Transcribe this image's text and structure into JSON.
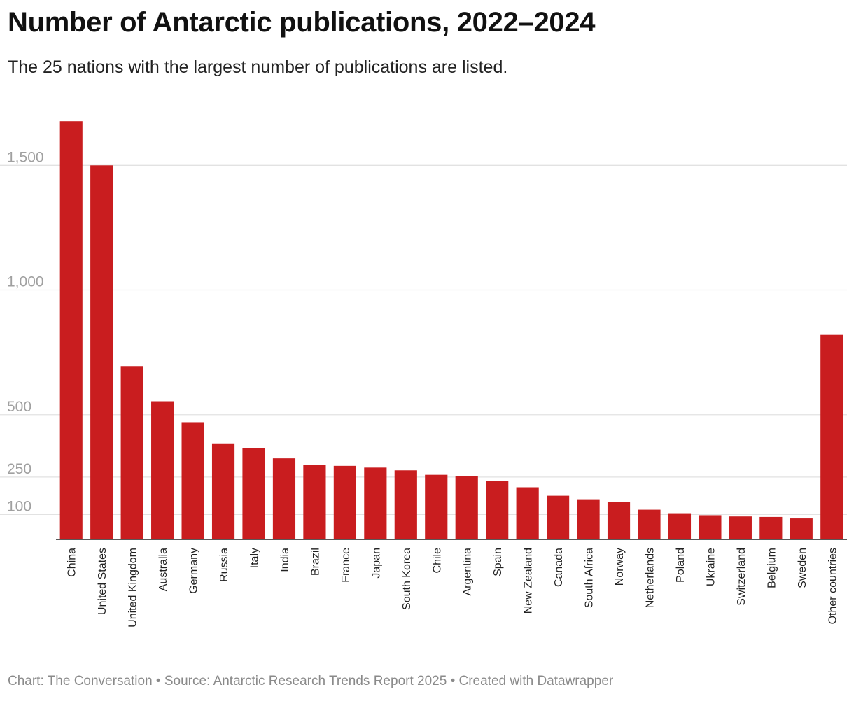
{
  "title": "Number of Antarctic publications, 2022–2024",
  "subtitle": "The 25 nations with the largest number of publications are listed.",
  "footer": "Chart: The Conversation • Source: Antarctic Research Trends Report 2025 • Created with Datawrapper",
  "chart_data": {
    "type": "bar",
    "title": "Number of Antarctic publications, 2022–2024",
    "subtitle": "The 25 nations with the largest number of publications are listed.",
    "categories": [
      "China",
      "United States",
      "United Kingdom",
      "Australia",
      "Germany",
      "Russia",
      "Italy",
      "India",
      "Brazil",
      "France",
      "Japan",
      "South Korea",
      "Chile",
      "Argentina",
      "Spain",
      "New Zealand",
      "Canada",
      "South Africa",
      "Norway",
      "Netherlands",
      "Poland",
      "Ukraine",
      "Switzerland",
      "Belgium",
      "Sweden",
      "Other countries"
    ],
    "values": [
      1677,
      1500,
      695,
      554,
      470,
      385,
      365,
      325,
      298,
      295,
      288,
      277,
      259,
      253,
      234,
      209,
      175,
      161,
      150,
      119,
      105,
      97,
      92,
      90,
      84,
      820
    ],
    "yticks": [
      100,
      250,
      500,
      1000,
      1500
    ],
    "ytick_labels": [
      "100",
      "250",
      "500",
      "1,000",
      "1,500"
    ],
    "ylim": [
      0,
      1700
    ],
    "xlabel": "",
    "ylabel": "",
    "grid": true,
    "bar_color": "#c91d1f"
  }
}
